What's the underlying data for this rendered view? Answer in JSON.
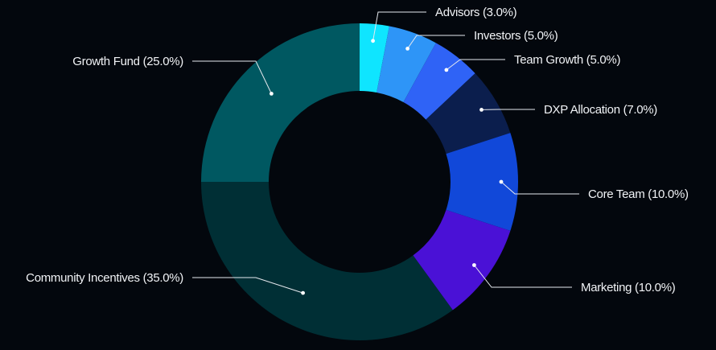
{
  "chart_data": {
    "type": "pie",
    "variant": "donut",
    "title": "",
    "slices": [
      {
        "label": "Advisors",
        "value": 3.0,
        "display": "Advisors (3.0%)",
        "color": "#0fe5ff"
      },
      {
        "label": "Investors",
        "value": 5.0,
        "display": "Investors (5.0%)",
        "color": "#2e95f7"
      },
      {
        "label": "Team Growth",
        "value": 5.0,
        "display": "Team Growth (5.0%)",
        "color": "#2f63f6"
      },
      {
        "label": "DXP Allocation",
        "value": 7.0,
        "display": "DXP Allocation (7.0%)",
        "color": "#0b1e4d"
      },
      {
        "label": "Core Team",
        "value": 10.0,
        "display": "Core Team (10.0%)",
        "color": "#1148d9"
      },
      {
        "label": "Marketing",
        "value": 10.0,
        "display": "Marketing (10.0%)",
        "color": "#4a11d6"
      },
      {
        "label": "Community Incentives",
        "value": 35.0,
        "display": "Community Incentives (35.0%)",
        "color": "#002f35"
      },
      {
        "label": "Growth Fund",
        "value": 25.0,
        "display": "Growth Fund (25.0%)",
        "color": "#005861"
      }
    ],
    "start_angle": "top",
    "direction": "clockwise",
    "legend": "none",
    "labels": "outside with leader lines"
  },
  "colors": {
    "background": "#03070d",
    "label_text": "#f1f3f6",
    "leader_line": "#e6e9ee"
  }
}
